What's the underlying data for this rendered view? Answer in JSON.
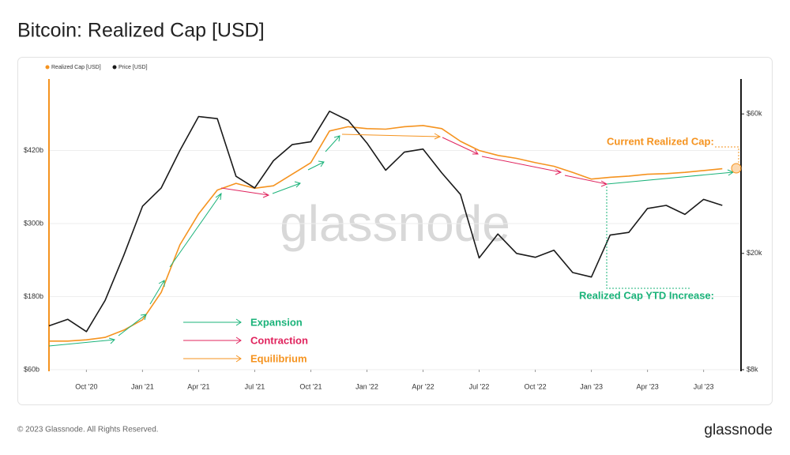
{
  "chart_data": {
    "type": "line",
    "title": "Bitcoin: Realized Cap [USD]",
    "x": [
      "2020-08",
      "2020-09",
      "2020-10",
      "2020-11",
      "2020-12",
      "2021-01",
      "2021-02",
      "2021-03",
      "2021-04",
      "2021-05",
      "2021-06",
      "2021-07",
      "2021-08",
      "2021-09",
      "2021-10",
      "2021-11",
      "2021-12",
      "2022-01",
      "2022-02",
      "2022-03",
      "2022-04",
      "2022-05",
      "2022-06",
      "2022-07",
      "2022-08",
      "2022-09",
      "2022-10",
      "2022-11",
      "2022-12",
      "2023-01",
      "2023-02",
      "2023-03",
      "2023-04",
      "2023-05",
      "2023-06",
      "2023-07",
      "2023-08"
    ],
    "series": [
      {
        "name": "Realized Cap [USD]",
        "color": "#f5931f",
        "values": [
          107000000000,
          107000000000,
          109000000000,
          113000000000,
          125000000000,
          142000000000,
          187000000000,
          265000000000,
          316000000000,
          355000000000,
          366000000000,
          358000000000,
          362000000000,
          381000000000,
          400000000000,
          452000000000,
          459000000000,
          456000000000,
          455000000000,
          459000000000,
          461000000000,
          456000000000,
          435000000000,
          420000000000,
          412000000000,
          407000000000,
          400000000000,
          394000000000,
          384000000000,
          373000000000,
          376000000000,
          378000000000,
          381000000000,
          382000000000,
          384000000000,
          387000000000,
          390000000000
        ]
      },
      {
        "name": "Price [USD]",
        "color": "#1a1a1a",
        "axis": "y2",
        "values": [
          11300,
          11900,
          10800,
          13800,
          19700,
          29000,
          33500,
          45000,
          58800,
          57800,
          36700,
          33500,
          41500,
          47100,
          48200,
          61300,
          57000,
          47700,
          38500,
          44400,
          45500,
          37700,
          31800,
          19300,
          23300,
          20000,
          19400,
          20500,
          17200,
          16600,
          23100,
          23600,
          28500,
          29200,
          27200,
          30600,
          29200
        ]
      }
    ],
    "xlim": [
      "2020-08",
      "2023-09"
    ],
    "xticks": [
      {
        "value": "2020-10",
        "label": "Oct '20"
      },
      {
        "value": "2021-01",
        "label": "Jan '21"
      },
      {
        "value": "2021-04",
        "label": "Apr '21"
      },
      {
        "value": "2021-07",
        "label": "Jul '21"
      },
      {
        "value": "2021-10",
        "label": "Oct '21"
      },
      {
        "value": "2022-01",
        "label": "Jan '22"
      },
      {
        "value": "2022-04",
        "label": "Apr '22"
      },
      {
        "value": "2022-07",
        "label": "Jul '22"
      },
      {
        "value": "2022-10",
        "label": "Oct '22"
      },
      {
        "value": "2023-01",
        "label": "Jan '23"
      },
      {
        "value": "2023-04",
        "label": "Apr '23"
      },
      {
        "value": "2023-07",
        "label": "Jul '23"
      }
    ],
    "ylim": [
      60000000000,
      540000000000
    ],
    "yticks": [
      {
        "value": 60000000000,
        "label": "$60b"
      },
      {
        "value": 180000000000,
        "label": "$180b"
      },
      {
        "value": 300000000000,
        "label": "$300b"
      },
      {
        "value": 420000000000,
        "label": "$420b"
      }
    ],
    "y2lim": [
      8000,
      80000
    ],
    "y2scale": "log",
    "y2ticks": [
      {
        "value": 8000,
        "label": "$8k"
      },
      {
        "value": 20000,
        "label": "$20k"
      },
      {
        "value": 60000,
        "label": "$60k"
      }
    ],
    "grid": true,
    "annotations": [
      "Current Realized Cap:",
      "Realized Cap YTD Increase:",
      "Expansion",
      "Contraction",
      "Equilibrium"
    ],
    "watermark": "glassnode"
  },
  "footer": {
    "copyright": "© 2023 Glassnode. All Rights Reserved.",
    "logo": "glassnode"
  }
}
